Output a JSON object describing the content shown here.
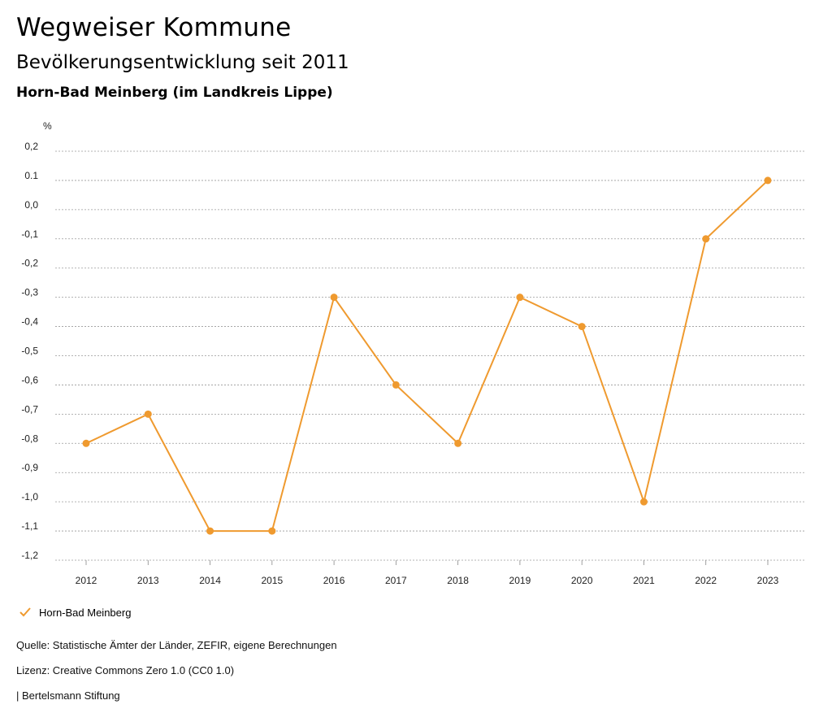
{
  "header": {
    "title": "Wegweiser Kommune",
    "subtitle": "Bevölkerungsentwicklung seit 2011",
    "region": "Horn-Bad Meinberg (im Landkreis Lippe)"
  },
  "chart_data": {
    "type": "line",
    "title": "Bevölkerungsentwicklung seit 2011",
    "ylabel": "%",
    "xlabel": "",
    "ylim": [
      -1.2,
      0.2
    ],
    "yticks": [
      "0,2",
      "0.1",
      "0,0",
      "-0,1",
      "-0,2",
      "-0,3",
      "-0,4",
      "-0,5",
      "-0,6",
      "-0,7",
      "-0,8",
      "-0,9",
      "-1,0",
      "-1,1",
      "-1,2"
    ],
    "ytick_values": [
      0.2,
      0.1,
      0.0,
      -0.1,
      -0.2,
      -0.3,
      -0.4,
      -0.5,
      -0.6,
      -0.7,
      -0.8,
      -0.9,
      -1.0,
      -1.1,
      -1.2
    ],
    "categories": [
      "2012",
      "2013",
      "2014",
      "2015",
      "2016",
      "2017",
      "2018",
      "2019",
      "2020",
      "2021",
      "2022",
      "2023"
    ],
    "series": [
      {
        "name": "Horn-Bad Meinberg",
        "color": "#ef9a2f",
        "values": [
          -0.8,
          -0.7,
          -1.1,
          -1.1,
          -0.3,
          -0.6,
          -0.8,
          -0.3,
          -0.4,
          -1.0,
          -0.1,
          0.1
        ]
      }
    ],
    "grid": true,
    "legend_position": "bottom-left"
  },
  "footer": {
    "source": "Quelle: Statistische Ämter der Länder, ZEFIR, eigene Berechnungen",
    "license": "Lizenz: Creative Commons Zero 1.0 (CC0 1.0)",
    "publisher": "| Bertelsmann Stiftung"
  }
}
